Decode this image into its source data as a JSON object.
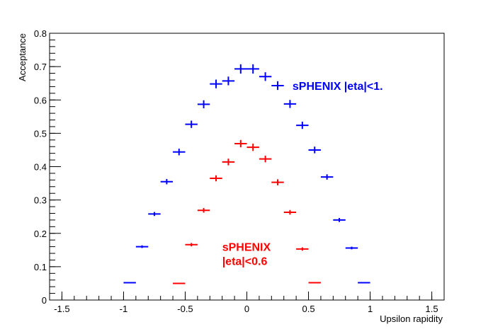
{
  "chart_data": {
    "type": "scatter",
    "xlabel": "Upsilon rapidity",
    "ylabel": "Acceptance",
    "xlim": [
      -1.6,
      1.6
    ],
    "ylim": [
      0,
      0.8
    ],
    "x_ticks": [
      -1.5,
      -1,
      -0.5,
      0,
      0.5,
      1,
      1.5
    ],
    "x_tick_labels": [
      "-1.5",
      "-1",
      "-0.5",
      "0",
      "0.5",
      "1",
      "1.5"
    ],
    "y_ticks": [
      0,
      0.1,
      0.2,
      0.3,
      0.4,
      0.5,
      0.6,
      0.7,
      0.8
    ],
    "y_tick_labels": [
      "0",
      "0.1",
      "0.2",
      "0.3",
      "0.4",
      "0.5",
      "0.6",
      "0.7",
      "0.8"
    ],
    "grid": false,
    "marker": "error-cross",
    "series": [
      {
        "name": "sPHENIX  |eta|<1.",
        "color": "#0000ff",
        "x": [
          -0.95,
          -0.85,
          -0.75,
          -0.65,
          -0.55,
          -0.45,
          -0.35,
          -0.25,
          -0.15,
          -0.05,
          0.05,
          0.15,
          0.25,
          0.35,
          0.45,
          0.55,
          0.65,
          0.75,
          0.85,
          0.95
        ],
        "y": [
          0.052,
          0.16,
          0.258,
          0.355,
          0.444,
          0.527,
          0.587,
          0.648,
          0.657,
          0.693,
          0.693,
          0.67,
          0.643,
          0.588,
          0.524,
          0.45,
          0.369,
          0.24,
          0.156,
          0.052
        ],
        "xerr": 0.05,
        "yerr": [
          0.002,
          0.004,
          0.006,
          0.008,
          0.01,
          0.011,
          0.012,
          0.013,
          0.013,
          0.014,
          0.014,
          0.013,
          0.013,
          0.012,
          0.011,
          0.01,
          0.008,
          0.006,
          0.004,
          0.002
        ]
      },
      {
        "name": "sPHENIX |eta|<0.6",
        "color": "#ff0000",
        "x": [
          -0.55,
          -0.45,
          -0.35,
          -0.25,
          -0.15,
          -0.05,
          0.05,
          0.15,
          0.25,
          0.35,
          0.45,
          0.55
        ],
        "y": [
          0.05,
          0.166,
          0.269,
          0.365,
          0.414,
          0.469,
          0.458,
          0.423,
          0.353,
          0.263,
          0.153,
          0.052
        ],
        "xerr": 0.05,
        "yerr": [
          0.002,
          0.005,
          0.007,
          0.009,
          0.01,
          0.011,
          0.011,
          0.01,
          0.009,
          0.007,
          0.005,
          0.002
        ]
      }
    ],
    "annotations": [
      {
        "text": "sPHENIX  |eta|<1.",
        "color": "#0000ff",
        "x": 0.37,
        "y": 0.63
      },
      {
        "text": "sPHENIX",
        "color": "#ff0000",
        "x": -0.2,
        "y": 0.148
      },
      {
        "text": "|eta|<0.6",
        "color": "#ff0000",
        "x": -0.2,
        "y": 0.105
      }
    ]
  }
}
